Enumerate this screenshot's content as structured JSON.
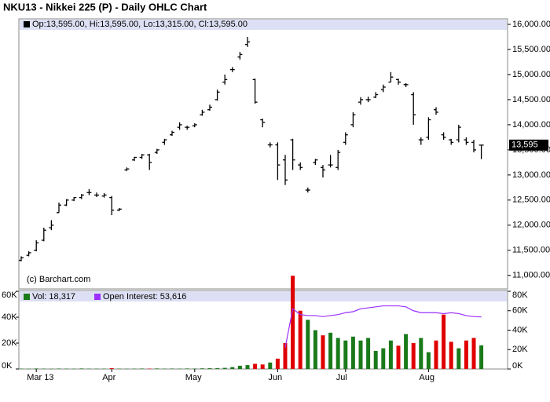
{
  "chart_data": {
    "type": "ohlc",
    "title": "NKU13 - Nikkei 225 (P) - Daily OHLC Chart",
    "header": "Op:13,595.00, Hi:13,595.00, Lo:13,315.00, Cl:13,595.00",
    "credit": "(c) Barchart.com",
    "last_label": "13,595",
    "categories": [
      null,
      null,
      "Mar 13",
      null,
      null,
      null,
      null,
      null,
      null,
      null,
      null,
      null,
      "Apr",
      null,
      null,
      null,
      null,
      null,
      null,
      null,
      null,
      null,
      null,
      "May",
      null,
      null,
      null,
      null,
      null,
      null,
      null,
      null,
      null,
      null,
      "Jun",
      null,
      null,
      null,
      null,
      null,
      null,
      null,
      null,
      "Jul",
      null,
      null,
      null,
      null,
      null,
      null,
      null,
      null,
      null,
      null,
      "Aug",
      null,
      null,
      null,
      null,
      null,
      null,
      null
    ],
    "open": [
      11300,
      11400,
      11500,
      11700,
      11950,
      12250,
      12400,
      12500,
      12550,
      12650,
      12600,
      12580,
      12550,
      12300,
      13100,
      13300,
      13350,
      13400,
      13450,
      13650,
      13800,
      13950,
      13950,
      13980,
      14200,
      14300,
      14500,
      14850,
      15100,
      15350,
      15600,
      14900,
      14100,
      13600,
      13600,
      13300,
      13700,
      13200,
      12700,
      13250,
      13150,
      13200,
      13150,
      13650,
      14000,
      14450,
      14500,
      14550,
      14700,
      14850,
      14900,
      14800,
      14600,
      13700,
      13750,
      14300,
      13800,
      13700,
      13700,
      13700,
      13650,
      13595
    ],
    "high": [
      11380,
      11480,
      11700,
      11950,
      12100,
      12450,
      12520,
      12560,
      12620,
      12720,
      12650,
      12640,
      12580,
      12340,
      13150,
      13360,
      13420,
      13420,
      13520,
      13720,
      13880,
      14050,
      13980,
      14030,
      14300,
      14400,
      14700,
      15000,
      15150,
      15450,
      15750,
      14920,
      14120,
      13650,
      13650,
      13400,
      13720,
      13250,
      12750,
      13320,
      13200,
      13400,
      13500,
      13850,
      14250,
      14550,
      14560,
      14650,
      14800,
      15050,
      14920,
      14830,
      14650,
      13750,
      14150,
      14350,
      13850,
      13720,
      14000,
      13750,
      13700,
      13595
    ],
    "low": [
      11280,
      11380,
      11480,
      11680,
      11900,
      12250,
      12380,
      12480,
      12520,
      12600,
      12560,
      12550,
      12200,
      12280,
      13080,
      13280,
      13320,
      13100,
      13420,
      13600,
      13780,
      13900,
      13900,
      13950,
      14180,
      14280,
      14480,
      14800,
      15050,
      15300,
      15550,
      14420,
      13950,
      13550,
      12900,
      12800,
      13100,
      13100,
      12650,
      13200,
      12950,
      13150,
      13100,
      13600,
      13950,
      14400,
      14450,
      14530,
      14650,
      14850,
      14800,
      14750,
      14000,
      13600,
      13700,
      14200,
      13700,
      13600,
      13650,
      13600,
      13450,
      13315
    ],
    "close": [
      11350,
      11450,
      11650,
      11900,
      12000,
      12400,
      12500,
      12550,
      12600,
      12650,
      12600,
      12600,
      12300,
      12320,
      13120,
      13350,
      13400,
      13250,
      13500,
      13700,
      13850,
      14000,
      13950,
      14000,
      14250,
      14350,
      14650,
      14900,
      15100,
      15400,
      15650,
      14450,
      14050,
      13600,
      13200,
      12900,
      13300,
      13150,
      12700,
      13300,
      13100,
      13200,
      13450,
      13800,
      14200,
      14500,
      14500,
      14600,
      14750,
      14950,
      14850,
      14800,
      14200,
      13700,
      14100,
      14250,
      13750,
      13650,
      13950,
      13650,
      13500,
      13595
    ],
    "color": "#000000",
    "ylim": [
      10730,
      16110
    ],
    "yticks": [
      {
        "value": 11000,
        "label": "11,000.00"
      },
      {
        "value": 11500,
        "label": "11,500.00"
      },
      {
        "value": 12000,
        "label": "12,000.00"
      },
      {
        "value": 12500,
        "label": "12,500.00"
      },
      {
        "value": 13000,
        "label": "13,000.00"
      },
      {
        "value": 13500,
        "label": "13,500.00"
      },
      {
        "value": 14000,
        "label": "14,000.00"
      },
      {
        "value": 14500,
        "label": "14,500.00"
      },
      {
        "value": 15000,
        "label": "15,000.00"
      },
      {
        "value": 15500,
        "label": "15,500.00"
      },
      {
        "value": 16000,
        "label": "16,000.00"
      }
    ],
    "volume": {
      "name": "Vol: 18,317",
      "up_color": "#1a7a1a",
      "down_color": "#e00000",
      "values": [
        300,
        250,
        400,
        300,
        200,
        350,
        300,
        250,
        400,
        300,
        300,
        250,
        600,
        300,
        250,
        300,
        350,
        300,
        400,
        300,
        350,
        300,
        400,
        350,
        500,
        600,
        700,
        900,
        1500,
        2500,
        3000,
        4000,
        3500,
        5000,
        8000,
        20000,
        72000,
        45000,
        38000,
        30000,
        26000,
        28000,
        24000,
        22000,
        25000,
        22000,
        24000,
        14000,
        16000,
        22000,
        18000,
        27000,
        20000,
        24000,
        13000,
        22000,
        42000,
        21000,
        16000,
        22000,
        24000,
        18317
      ]
    },
    "open_interest": {
      "name": "Open Interest: 53,616",
      "color": "#9b30ff",
      "axis": "y2",
      "values": [
        null,
        null,
        null,
        null,
        null,
        null,
        null,
        null,
        null,
        null,
        null,
        null,
        null,
        null,
        null,
        null,
        null,
        null,
        null,
        null,
        null,
        null,
        null,
        null,
        null,
        null,
        null,
        null,
        null,
        null,
        null,
        null,
        null,
        null,
        null,
        22000,
        62000,
        56000,
        55000,
        55000,
        54000,
        55000,
        56000,
        58000,
        59000,
        62000,
        63000,
        64000,
        65000,
        65000,
        65000,
        64000,
        60000,
        58000,
        58000,
        58000,
        57000,
        58000,
        57000,
        55000,
        54000,
        53616
      ]
    },
    "vlim": [
      0,
      60000
    ],
    "vticks": [
      {
        "value": 0,
        "label": "0K"
      },
      {
        "value": 20000,
        "label": "20K"
      },
      {
        "value": 40000,
        "label": "40K"
      },
      {
        "value": 60000,
        "label": "60K"
      }
    ],
    "y2lim": [
      0,
      80000
    ],
    "y2ticks": [
      {
        "value": 0,
        "label": "0K"
      },
      {
        "value": 20000,
        "label": "20K"
      },
      {
        "value": 40000,
        "label": "40K"
      },
      {
        "value": 60000,
        "label": "60K"
      },
      {
        "value": 80000,
        "label": "80K"
      }
    ]
  }
}
